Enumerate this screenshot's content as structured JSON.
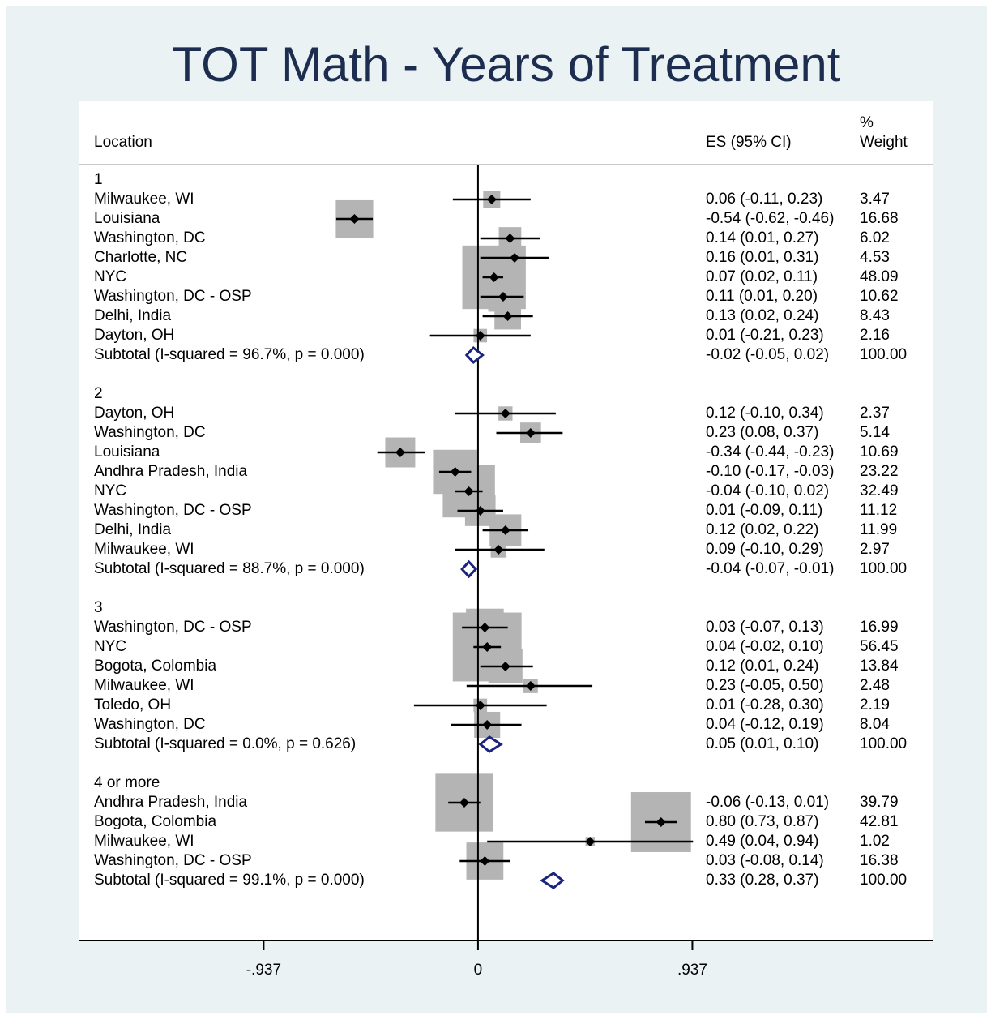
{
  "chart_data": {
    "type": "forest",
    "title": "TOT Math - Years of Treatment",
    "headers": {
      "location": "Location",
      "es": "ES (95% CI)",
      "pct": "%",
      "weight": "Weight"
    },
    "xlim": [
      -1.746,
      1.991
    ],
    "xticks": [
      {
        "value": -0.937,
        "label": "-.937"
      },
      0,
      {
        "value": 0.937,
        "label": ".937"
      }
    ],
    "groups": [
      {
        "name": "1",
        "studies": [
          {
            "label": "Milwaukee, WI",
            "es": 0.06,
            "lo": -0.11,
            "hi": 0.23,
            "weight": 3.47,
            "es_label": "0.06 (-0.11, 0.23)"
          },
          {
            "label": "Louisiana",
            "es": -0.54,
            "lo": -0.62,
            "hi": -0.46,
            "weight": 16.68,
            "es_label": "-0.54 (-0.62, -0.46)"
          },
          {
            "label": "Washington, DC",
            "es": 0.14,
            "lo": 0.01,
            "hi": 0.27,
            "weight": 6.02,
            "es_label": "0.14 (0.01, 0.27)"
          },
          {
            "label": "Charlotte, NC",
            "es": 0.16,
            "lo": 0.01,
            "hi": 0.31,
            "weight": 4.53,
            "es_label": "0.16 (0.01, 0.31)"
          },
          {
            "label": "NYC",
            "es": 0.07,
            "lo": 0.02,
            "hi": 0.11,
            "weight": 48.09,
            "es_label": "0.07 (0.02, 0.11)"
          },
          {
            "label": "Washington, DC - OSP",
            "es": 0.11,
            "lo": 0.01,
            "hi": 0.2,
            "weight": 10.62,
            "es_label": "0.11 (0.01, 0.20)"
          },
          {
            "label": "Delhi, India",
            "es": 0.13,
            "lo": 0.02,
            "hi": 0.24,
            "weight": 8.43,
            "es_label": "0.13 (0.02, 0.24)"
          },
          {
            "label": "Dayton, OH",
            "es": 0.01,
            "lo": -0.21,
            "hi": 0.23,
            "weight": 2.16,
            "es_label": "0.01 (-0.21, 0.23)"
          }
        ],
        "subtotal": {
          "label": "Subtotal  (I-squared = 96.7%, p = 0.000)",
          "es": -0.02,
          "lo": -0.05,
          "hi": 0.02,
          "weight": "100.00",
          "es_label": "-0.02 (-0.05, 0.02)"
        }
      },
      {
        "name": "2",
        "studies": [
          {
            "label": "Dayton, OH",
            "es": 0.12,
            "lo": -0.1,
            "hi": 0.34,
            "weight": 2.37,
            "es_label": "0.12 (-0.10, 0.34)"
          },
          {
            "label": "Washington, DC",
            "es": 0.23,
            "lo": 0.08,
            "hi": 0.37,
            "weight": 5.14,
            "es_label": "0.23 (0.08, 0.37)"
          },
          {
            "label": "Louisiana",
            "es": -0.34,
            "lo": -0.44,
            "hi": -0.23,
            "weight": 10.69,
            "es_label": "-0.34 (-0.44, -0.23)"
          },
          {
            "label": "Andhra Pradesh, India",
            "es": -0.1,
            "lo": -0.17,
            "hi": -0.03,
            "weight": 23.22,
            "es_label": "-0.10 (-0.17, -0.03)"
          },
          {
            "label": "NYC",
            "es": -0.04,
            "lo": -0.1,
            "hi": 0.02,
            "weight": 32.49,
            "es_label": "-0.04 (-0.10, 0.02)"
          },
          {
            "label": "Washington, DC - OSP",
            "es": 0.01,
            "lo": -0.09,
            "hi": 0.11,
            "weight": 11.12,
            "es_label": "0.01 (-0.09, 0.11)"
          },
          {
            "label": "Delhi, India",
            "es": 0.12,
            "lo": 0.02,
            "hi": 0.22,
            "weight": 11.99,
            "es_label": "0.12 (0.02, 0.22)"
          },
          {
            "label": "Milwaukee, WI",
            "es": 0.09,
            "lo": -0.1,
            "hi": 0.29,
            "weight": 2.97,
            "es_label": "0.09 (-0.10, 0.29)"
          }
        ],
        "subtotal": {
          "label": "Subtotal  (I-squared = 88.7%, p = 0.000)",
          "es": -0.04,
          "lo": -0.07,
          "hi": -0.01,
          "weight": "100.00",
          "es_label": "-0.04 (-0.07, -0.01)"
        }
      },
      {
        "name": "3",
        "studies": [
          {
            "label": "Washington, DC - OSP",
            "es": 0.03,
            "lo": -0.07,
            "hi": 0.13,
            "weight": 16.99,
            "es_label": "0.03 (-0.07, 0.13)"
          },
          {
            "label": "NYC",
            "es": 0.04,
            "lo": -0.02,
            "hi": 0.1,
            "weight": 56.45,
            "es_label": "0.04 (-0.02, 0.10)"
          },
          {
            "label": "Bogota, Colombia",
            "es": 0.12,
            "lo": 0.01,
            "hi": 0.24,
            "weight": 13.84,
            "es_label": "0.12 (0.01, 0.24)"
          },
          {
            "label": "Milwaukee, WI",
            "es": 0.23,
            "lo": -0.05,
            "hi": 0.5,
            "weight": 2.48,
            "es_label": "0.23 (-0.05, 0.50)"
          },
          {
            "label": "Toledo, OH",
            "es": 0.01,
            "lo": -0.28,
            "hi": 0.3,
            "weight": 2.19,
            "es_label": "0.01 (-0.28, 0.30)"
          },
          {
            "label": "Washington, DC",
            "es": 0.04,
            "lo": -0.12,
            "hi": 0.19,
            "weight": 8.04,
            "es_label": "0.04 (-0.12, 0.19)"
          }
        ],
        "subtotal": {
          "label": "Subtotal  (I-squared = 0.0%, p = 0.626)",
          "es": 0.05,
          "lo": 0.01,
          "hi": 0.1,
          "weight": "100.00",
          "es_label": "0.05 (0.01, 0.10)"
        }
      },
      {
        "name": "4 or more",
        "studies": [
          {
            "label": "Andhra Pradesh, India",
            "es": -0.06,
            "lo": -0.13,
            "hi": 0.01,
            "weight": 39.79,
            "es_label": "-0.06 (-0.13, 0.01)"
          },
          {
            "label": "Bogota, Colombia",
            "es": 0.8,
            "lo": 0.73,
            "hi": 0.87,
            "weight": 42.81,
            "es_label": "0.80 (0.73, 0.87)"
          },
          {
            "label": "Milwaukee, WI",
            "es": 0.49,
            "lo": 0.04,
            "hi": 0.94,
            "weight": 1.02,
            "es_label": "0.49 (0.04, 0.94)"
          },
          {
            "label": "Washington, DC - OSP",
            "es": 0.03,
            "lo": -0.08,
            "hi": 0.14,
            "weight": 16.38,
            "es_label": "0.03 (-0.08, 0.14)"
          }
        ],
        "subtotal": {
          "label": "Subtotal  (I-squared = 99.1%, p = 0.000)",
          "es": 0.33,
          "lo": 0.28,
          "hi": 0.37,
          "weight": "100.00",
          "es_label": "0.33 (0.28, 0.37)"
        }
      }
    ]
  }
}
